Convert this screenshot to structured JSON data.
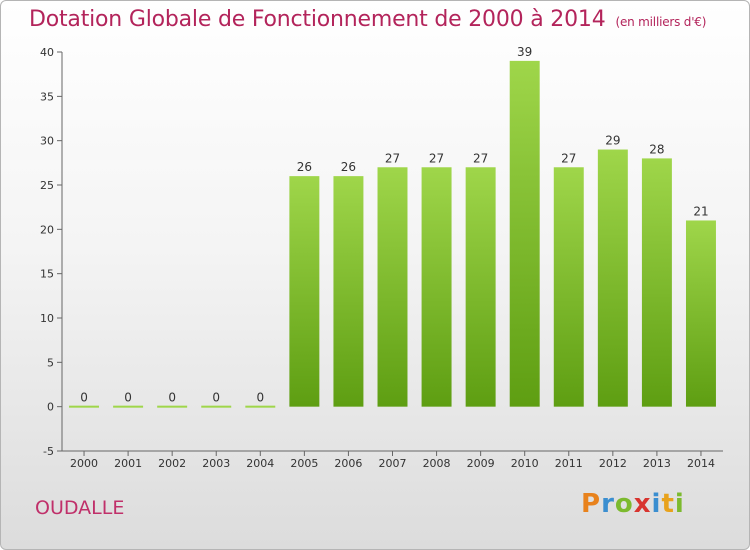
{
  "chart_data": {
    "type": "bar",
    "title": "Dotation Globale de Fonctionnement de 2000 à 2014",
    "subtitle": "(en milliers d'€)",
    "categories": [
      "2000",
      "2001",
      "2002",
      "2003",
      "2004",
      "2005",
      "2006",
      "2007",
      "2008",
      "2009",
      "2010",
      "2011",
      "2012",
      "2013",
      "2014"
    ],
    "values": [
      0,
      0,
      0,
      0,
      0,
      26,
      26,
      27,
      27,
      27,
      39,
      27,
      29,
      28,
      21
    ],
    "yticks": [
      -5,
      0,
      5,
      10,
      15,
      20,
      25,
      30,
      35,
      40
    ],
    "ylim": [
      -5,
      40
    ],
    "grid": false,
    "xlabel": "",
    "ylabel": "",
    "bar_color": "#7cbc2c"
  },
  "commune": "OUDALLE",
  "logo": {
    "letters": [
      "P",
      "r",
      "o",
      "x",
      "i",
      "t",
      "i"
    ]
  }
}
